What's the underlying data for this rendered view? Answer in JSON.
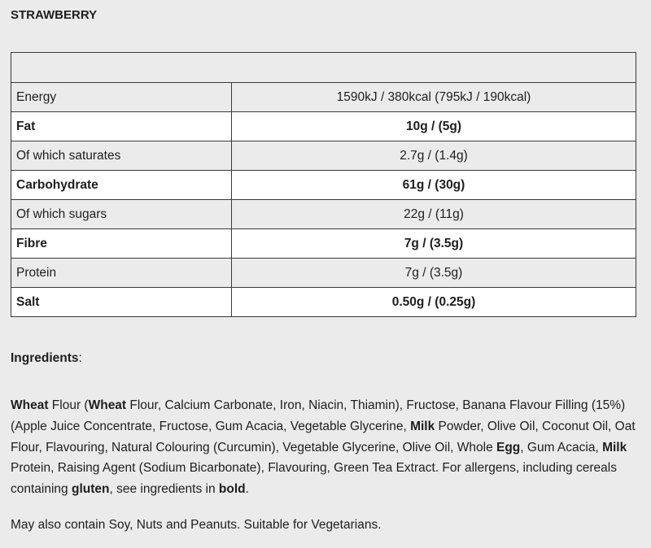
{
  "title": "STRAWBERRY",
  "table": {
    "header": "",
    "rows": [
      {
        "label": "Energy",
        "value": "1590kJ / 380kcal (795kJ / 190kcal)",
        "bold": false
      },
      {
        "label": "Fat",
        "value": "10g / (5g)",
        "bold": true
      },
      {
        "label": "Of which saturates",
        "value": "2.7g / (1.4g)",
        "bold": false
      },
      {
        "label": "Carbohydrate",
        "value": "61g / (30g)",
        "bold": true
      },
      {
        "label": "Of which sugars",
        "value": "22g / (11g)",
        "bold": false
      },
      {
        "label": "Fibre",
        "value": "7g / (3.5g)",
        "bold": true
      },
      {
        "label": "Protein",
        "value": "7g / (3.5g)",
        "bold": false
      },
      {
        "label": "Salt",
        "value": "0.50g / (0.25g)",
        "bold": true
      }
    ]
  },
  "ingredients": {
    "heading": "Ingredients",
    "heading_suffix": ":",
    "segments": [
      {
        "text": "Wheat",
        "bold": true
      },
      {
        "text": " Flour (",
        "bold": false
      },
      {
        "text": "Wheat",
        "bold": true
      },
      {
        "text": " Flour, Calcium Carbonate, Iron, Niacin, Thiamin), Fructose, Banana Flavour Filling (15%) (Apple Juice Concentrate, Fructose, Gum Acacia, Vegetable Glycerine, ",
        "bold": false
      },
      {
        "text": "Milk",
        "bold": true
      },
      {
        "text": " Powder, Olive Oil, Coconut Oil, Oat Flour, Flavouring, Natural Colouring (Curcumin), Vegetable Glycerine, Olive Oil, Whole ",
        "bold": false
      },
      {
        "text": "Egg",
        "bold": true
      },
      {
        "text": ", Gum Acacia, ",
        "bold": false
      },
      {
        "text": "Milk",
        "bold": true
      },
      {
        "text": " Protein, Raising Agent (Sodium Bicarbonate), Flavouring, Green Tea Extract. For allergens, including cereals containing ",
        "bold": false
      },
      {
        "text": "gluten",
        "bold": true
      },
      {
        "text": ", see ingredients in ",
        "bold": false
      },
      {
        "text": "bold",
        "bold": true
      },
      {
        "text": ".",
        "bold": false
      }
    ],
    "note": "May also contain Soy, Nuts and Peanuts. Suitable for Vegetarians."
  }
}
